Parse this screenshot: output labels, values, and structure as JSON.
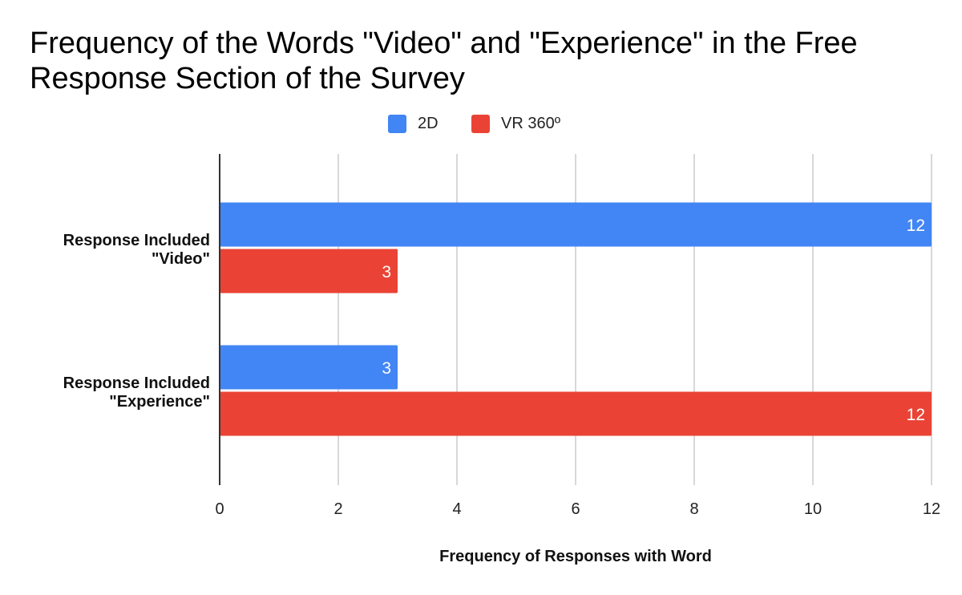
{
  "chart_data": {
    "type": "bar",
    "orientation": "horizontal",
    "title": "Frequency of the Words \"Video\" and \"Experience\" in the Free Response Section of the Survey",
    "xlabel": "Frequency of Responses with Word",
    "ylabel": "",
    "categories": [
      "Response Included \"Video\"",
      "Response Included \"Experience\""
    ],
    "category_lines": [
      [
        "Response Included",
        "\"Video\""
      ],
      [
        "Response Included",
        "\"Experience\""
      ]
    ],
    "series": [
      {
        "name": "2D",
        "values": [
          12,
          3
        ],
        "color": "#4285f4"
      },
      {
        "name": "VR 360º",
        "values": [
          3,
          12
        ],
        "color": "#ea4335"
      }
    ],
    "xlim": [
      0,
      12
    ],
    "xticks": [
      0,
      2,
      4,
      6,
      8,
      10,
      12
    ],
    "data_labels": true,
    "grid": true,
    "legend_position": "top"
  }
}
